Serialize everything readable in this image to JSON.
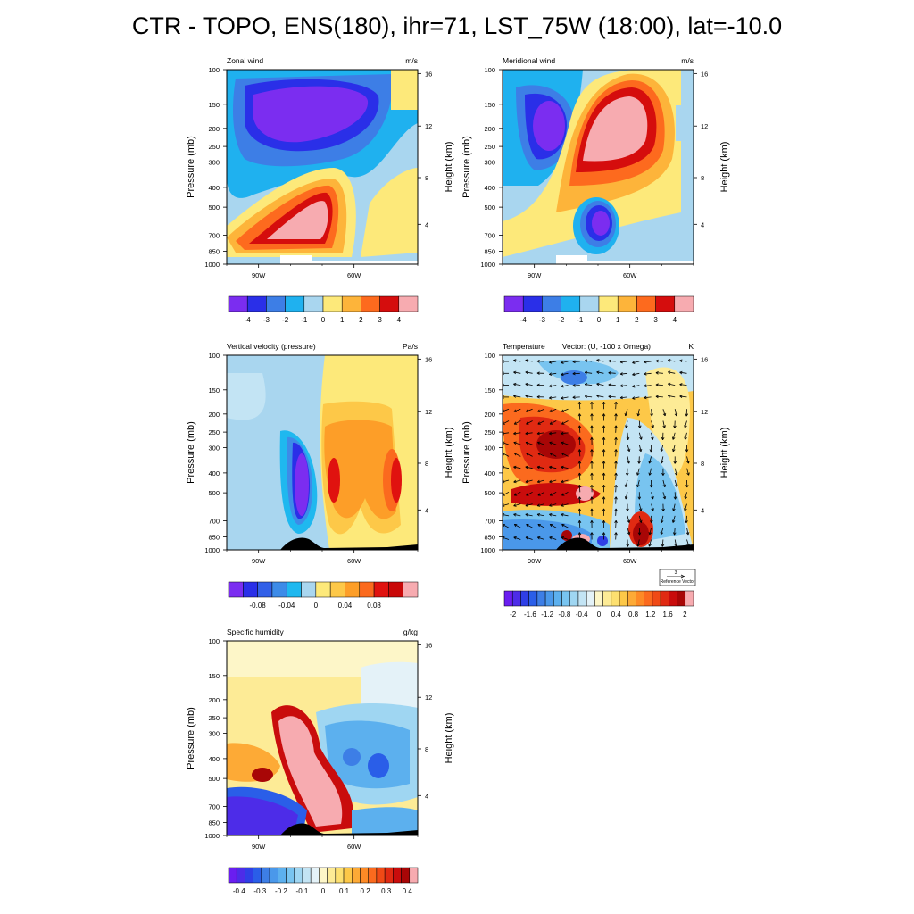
{
  "figure": {
    "title": "CTR - TOPO, ENS(180), ihr=71, LST_75W (18:00), lat=-10.0"
  },
  "palettes": {
    "bluered10": [
      "#7b2df0",
      "#2a2fe8",
      "#3d7ee6",
      "#1fb1ef",
      "#a9d6ef",
      "#fde97a",
      "#fdb43a",
      "#fd6a1e",
      "#d50d0d",
      "#f7abb0"
    ],
    "bluered12": [
      "#7b2df0",
      "#2a2fe8",
      "#3260e8",
      "#3d8be8",
      "#1fb8ef",
      "#a9d6ef",
      "#fde97a",
      "#fdc848",
      "#fd9e28",
      "#fb6a1e",
      "#e0120f",
      "#c90808",
      "#f7abb0"
    ],
    "ramp": [
      "#6a1ef0",
      "#4d2ce8",
      "#2f3fe6",
      "#2a5ee8",
      "#3d7ee6",
      "#4a98ea",
      "#5cb0ee",
      "#78c4f0",
      "#9fd6f2",
      "#c3e4f4",
      "#e4f2f8",
      "#fdf6c8",
      "#fdeb96",
      "#fde070",
      "#fdc848",
      "#fdaa36",
      "#fd8a26",
      "#fb6a1e",
      "#f04a16",
      "#e02a12",
      "#c90c0c",
      "#a80606",
      "#f7abb0"
    ]
  },
  "chart_data": [
    {
      "type": "heatmap",
      "panel": "zonal-wind",
      "title": "Zonal wind",
      "units": "m/s",
      "ylabel": "Pressure (mb)",
      "ylabel_right": "Height (km)",
      "yticks": [
        "100",
        "150",
        "200",
        "250",
        "300",
        "400",
        "500",
        "700",
        "850",
        "1000"
      ],
      "yticks_right": [
        "16",
        "12",
        "8",
        "4"
      ],
      "xticks": [
        "90W",
        "60W"
      ],
      "xlim": [
        -100,
        -40
      ],
      "colorbar_labels": [
        "-4",
        "-3",
        "-2",
        "-1",
        "0",
        "1",
        "2",
        "3",
        "4"
      ],
      "features": [
        {
          "lon": -78,
          "p": 150,
          "value": -5
        },
        {
          "lon": -73,
          "p": 500,
          "value": 4.5
        },
        {
          "lon": -56,
          "p": 400,
          "value": 0.5
        }
      ]
    },
    {
      "type": "heatmap",
      "panel": "meridional-wind",
      "title": "Meridional wind",
      "units": "m/s",
      "ylabel": "Pressure (mb)",
      "ylabel_right": "Height (km)",
      "yticks": [
        "100",
        "150",
        "200",
        "250",
        "300",
        "400",
        "500",
        "700",
        "850",
        "1000"
      ],
      "yticks_right": [
        "16",
        "12",
        "8",
        "4"
      ],
      "xticks": [
        "90W",
        "60W"
      ],
      "xlim": [
        -100,
        -40
      ],
      "colorbar_labels": [
        "-4",
        "-3",
        "-2",
        "-1",
        "0",
        "1",
        "2",
        "3",
        "4"
      ],
      "features": [
        {
          "lon": -89,
          "p": 200,
          "value": -4.5
        },
        {
          "lon": -67,
          "p": 200,
          "value": 4.5
        },
        {
          "lon": -78,
          "p": 600,
          "value": -4.5
        }
      ]
    },
    {
      "type": "heatmap",
      "panel": "vertical-velocity",
      "title": "Vertical velocity (pressure)",
      "units": "Pa/s",
      "ylabel": "Pressure (mb)",
      "ylabel_right": "Height (km)",
      "yticks": [
        "100",
        "150",
        "200",
        "250",
        "300",
        "400",
        "500",
        "700",
        "850",
        "1000"
      ],
      "yticks_right": [
        "16",
        "12",
        "8",
        "4"
      ],
      "xticks": [
        "90W",
        "60W"
      ],
      "xlim": [
        -100,
        -40
      ],
      "colorbar_labels": [
        "-0.08",
        "-0.04",
        "0",
        "0.04",
        "0.08"
      ],
      "features": [
        {
          "lon": -78,
          "p": 450,
          "value": -0.1
        },
        {
          "lon": -72,
          "p": 400,
          "value": 0.08
        },
        {
          "lon": -62,
          "p": 400,
          "value": 0.06
        }
      ]
    },
    {
      "type": "heatmap",
      "panel": "temperature",
      "title": "Temperature",
      "subtitle": "Vector: (U, -100 x Omega)",
      "units": "K",
      "ylabel": "Pressure (mb)",
      "ylabel_right": "Height (km)",
      "yticks": [
        "100",
        "150",
        "200",
        "250",
        "300",
        "400",
        "500",
        "700",
        "850",
        "1000"
      ],
      "yticks_right": [
        "16",
        "12",
        "8",
        "4"
      ],
      "xticks": [
        "90W",
        "60W"
      ],
      "xlim": [
        -100,
        -40
      ],
      "colorbar_labels": [
        "-2",
        "-1.6",
        "-1.2",
        "-0.8",
        "-0.4",
        "0",
        "0.4",
        "0.8",
        "1.2",
        "1.6",
        "2"
      ],
      "reference_vector": {
        "value": "3",
        "label": "Reference Vector"
      },
      "features": [
        {
          "lon": -80,
          "p": 320,
          "value": 1.6
        },
        {
          "lon": -84,
          "p": 120,
          "value": -0.8
        },
        {
          "lon": -82,
          "p": 530,
          "value": 1.8
        },
        {
          "lon": -60,
          "p": 850,
          "value": 2
        }
      ]
    },
    {
      "type": "heatmap",
      "panel": "specific-humidity",
      "title": "Specific humidity",
      "units": "g/kg",
      "ylabel": "Pressure (mb)",
      "ylabel_right": "Height (km)",
      "yticks": [
        "100",
        "150",
        "200",
        "250",
        "300",
        "400",
        "500",
        "700",
        "850",
        "1000"
      ],
      "yticks_right": [
        "16",
        "12",
        "8",
        "4"
      ],
      "xticks": [
        "90W",
        "60W"
      ],
      "xlim": [
        -100,
        -40
      ],
      "colorbar_labels": [
        "-0.4",
        "-0.3",
        "-0.2",
        "-0.1",
        "0",
        "0.1",
        "0.2",
        "0.3",
        "0.4"
      ],
      "features": [
        {
          "lon": -76,
          "p": 500,
          "value": 0.45
        },
        {
          "lon": -60,
          "p": 450,
          "value": -0.2
        },
        {
          "lon": -95,
          "p": 800,
          "value": -0.45
        }
      ]
    }
  ]
}
